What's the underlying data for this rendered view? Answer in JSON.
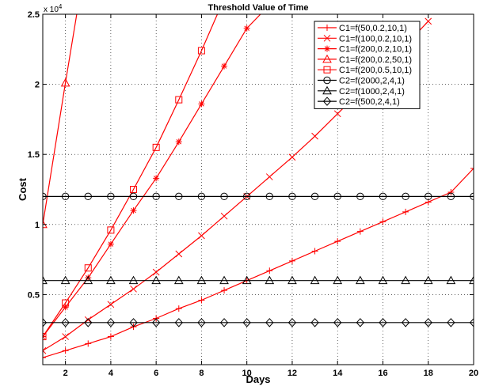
{
  "chart_data": {
    "type": "line",
    "title": "Threshold Value of Time",
    "xlabel": "Days",
    "ylabel": "Cost",
    "xlim": [
      1,
      20
    ],
    "ylim": [
      0,
      25000
    ],
    "y_exponent_label": "x 10",
    "y_exponent_power": "4",
    "xticks": [
      2,
      4,
      6,
      8,
      10,
      12,
      14,
      16,
      18,
      20
    ],
    "xtick_labels": [
      "2",
      "4",
      "6",
      "8",
      "10",
      "12",
      "14",
      "16",
      "18",
      "20"
    ],
    "yticks": [
      5000,
      10000,
      15000,
      20000,
      25000
    ],
    "ytick_labels": [
      "0.5",
      "1",
      "1.5",
      "2",
      "2.5"
    ],
    "grid": true,
    "legend_position": "top-right",
    "series": [
      {
        "name": "C1=f(50,0.2,10,1)",
        "marker": "plus",
        "color": "#ff0000",
        "x": [
          1,
          2,
          3,
          4,
          5,
          6,
          7,
          8,
          9,
          10,
          11,
          12,
          13,
          14,
          15,
          16,
          17,
          18,
          19,
          20
        ],
        "values": [
          500,
          1000,
          1500,
          2000,
          2700,
          3300,
          4000,
          4600,
          5300,
          6000,
          6700,
          7400,
          8100,
          8800,
          9500,
          10200,
          10900,
          11600,
          12300,
          14000
        ]
      },
      {
        "name": "C1=f(100,0.2,10,1)",
        "marker": "x",
        "color": "#ff0000",
        "x": [
          1,
          2,
          3,
          4,
          5,
          6,
          7,
          8,
          9,
          10,
          11,
          12,
          13,
          14,
          15,
          16,
          17,
          18
        ],
        "values": [
          1000,
          2000,
          3200,
          4300,
          5400,
          6600,
          7900,
          9200,
          10600,
          12000,
          13400,
          14800,
          16300,
          17900,
          19500,
          21100,
          22800,
          24500
        ]
      },
      {
        "name": "C1=f(200,0.2,10,1)",
        "marker": "star",
        "color": "#ff0000",
        "x": [
          1,
          2,
          3,
          4,
          5,
          6,
          7,
          8,
          9,
          10,
          10.6
        ],
        "values": [
          2000,
          4100,
          6200,
          8600,
          11000,
          13300,
          15900,
          18600,
          21300,
          24000,
          25000
        ]
      },
      {
        "name": "C1=f(200,0.2,50,1)",
        "marker": "triangle",
        "color": "#ff0000",
        "x": [
          1,
          2,
          2.5
        ],
        "values": [
          10000,
          20100,
          25000
        ]
      },
      {
        "name": "C1=f(200,0.5,10,1)",
        "marker": "square",
        "color": "#ff0000",
        "x": [
          1,
          2,
          3,
          4,
          5,
          6,
          7,
          8,
          8.7
        ],
        "values": [
          2000,
          4400,
          6900,
          9600,
          12500,
          15500,
          18900,
          22400,
          25000
        ]
      },
      {
        "name": "C2=f(2000,2,4,1)",
        "marker": "circle",
        "color": "#000000",
        "x": [
          1,
          2,
          3,
          4,
          5,
          6,
          7,
          8,
          9,
          10,
          11,
          12,
          13,
          14,
          15,
          16,
          17,
          18,
          19,
          20
        ],
        "values": [
          12000,
          12000,
          12000,
          12000,
          12000,
          12000,
          12000,
          12000,
          12000,
          12000,
          12000,
          12000,
          12000,
          12000,
          12000,
          12000,
          12000,
          12000,
          12000,
          12000
        ]
      },
      {
        "name": "C2=f(1000,2,4,1)",
        "marker": "triangle",
        "color": "#000000",
        "x": [
          1,
          2,
          3,
          4,
          5,
          6,
          7,
          8,
          9,
          10,
          11,
          12,
          13,
          14,
          15,
          16,
          17,
          18,
          19,
          20
        ],
        "values": [
          6000,
          6000,
          6000,
          6000,
          6000,
          6000,
          6000,
          6000,
          6000,
          6000,
          6000,
          6000,
          6000,
          6000,
          6000,
          6000,
          6000,
          6000,
          6000,
          6000
        ]
      },
      {
        "name": "C2=f(500,2,4,1)",
        "marker": "diamond",
        "color": "#000000",
        "x": [
          1,
          2,
          3,
          4,
          5,
          6,
          7,
          8,
          9,
          10,
          11,
          12,
          13,
          14,
          15,
          16,
          17,
          18,
          19,
          20
        ],
        "values": [
          3000,
          3000,
          3000,
          3000,
          3000,
          3000,
          3000,
          3000,
          3000,
          3000,
          3000,
          3000,
          3000,
          3000,
          3000,
          3000,
          3000,
          3000,
          3000,
          3000
        ]
      }
    ]
  }
}
